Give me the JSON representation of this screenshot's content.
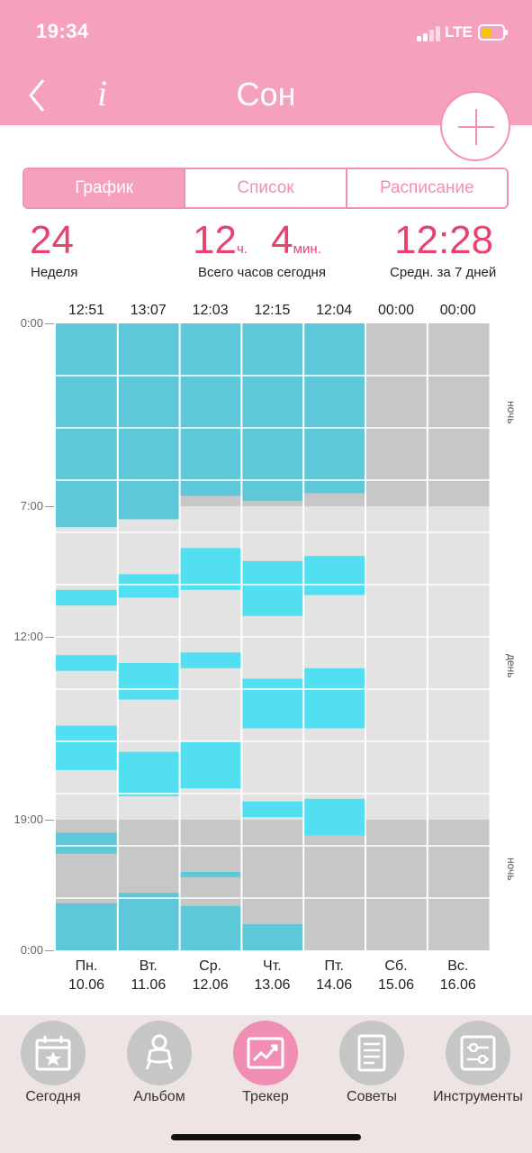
{
  "status_bar": {
    "time": "19:34",
    "network": "LTE"
  },
  "header": {
    "title": "Сон"
  },
  "tabs": [
    {
      "label": "График",
      "active": true
    },
    {
      "label": "Список",
      "active": false
    },
    {
      "label": "Расписание",
      "active": false
    }
  ],
  "stats": {
    "week": {
      "value": "24",
      "label": "Неделя"
    },
    "today": {
      "hours": "12",
      "hours_unit": "ч.",
      "minutes": "4",
      "minutes_unit": "мин.",
      "label": "Всего часов сегодня"
    },
    "avg": {
      "value": "12:28",
      "label": "Средн. за 7 дней"
    }
  },
  "chart_data": {
    "type": "bar",
    "y_ticks": [
      "0:00",
      "7:00",
      "12:00",
      "19:00",
      "0:00"
    ],
    "side_labels": [
      "ночь",
      "день",
      "ночь"
    ],
    "colors": {
      "night_sleep": "#5ec8d8",
      "day_sleep": "#52dff2",
      "night_bg": "#c7c7c7",
      "day_bg": "#e3e3e3"
    },
    "night_window_hours": {
      "morning_end": 7,
      "evening_start": 19
    },
    "days": [
      {
        "day": "Пн.",
        "date": "10.06",
        "total": "12:51",
        "sleep": [
          [
            0,
            7.8
          ],
          [
            10.2,
            10.8
          ],
          [
            12.7,
            13.3
          ],
          [
            15.4,
            17.1
          ],
          [
            19.5,
            20.3
          ],
          [
            22.2,
            24
          ]
        ]
      },
      {
        "day": "Вт.",
        "date": "11.06",
        "total": "13:07",
        "sleep": [
          [
            0,
            7.5
          ],
          [
            9.6,
            10.5
          ],
          [
            13.0,
            14.4
          ],
          [
            16.4,
            18.1
          ],
          [
            21.8,
            24
          ]
        ]
      },
      {
        "day": "Ср.",
        "date": "12.06",
        "total": "12:03",
        "sleep": [
          [
            0,
            6.6
          ],
          [
            8.6,
            10.2
          ],
          [
            12.6,
            13.2
          ],
          [
            16.0,
            17.8
          ],
          [
            21.0,
            21.2
          ],
          [
            22.3,
            24
          ]
        ]
      },
      {
        "day": "Чт.",
        "date": "13.06",
        "total": "12:15",
        "sleep": [
          [
            0,
            6.8
          ],
          [
            9.1,
            11.2
          ],
          [
            13.6,
            15.5
          ],
          [
            18.3,
            18.9
          ],
          [
            23.0,
            24
          ]
        ]
      },
      {
        "day": "Пт.",
        "date": "14.06",
        "total": "12:04",
        "sleep": [
          [
            0,
            6.5
          ],
          [
            8.9,
            10.4
          ],
          [
            13.2,
            15.5
          ],
          [
            18.2,
            19.6
          ]
        ]
      },
      {
        "day": "Сб.",
        "date": "15.06",
        "total": "00:00",
        "sleep": []
      },
      {
        "day": "Вс.",
        "date": "16.06",
        "total": "00:00",
        "sleep": []
      }
    ]
  },
  "nav": [
    {
      "label": "Сегодня",
      "icon": "calendar-star-icon",
      "active": false
    },
    {
      "label": "Альбом",
      "icon": "baby-icon",
      "active": false
    },
    {
      "label": "Трекер",
      "icon": "chart-trend-icon",
      "active": true
    },
    {
      "label": "Советы",
      "icon": "document-icon",
      "active": false
    },
    {
      "label": "Инструменты",
      "icon": "settings-sliders-icon",
      "active": false
    }
  ]
}
